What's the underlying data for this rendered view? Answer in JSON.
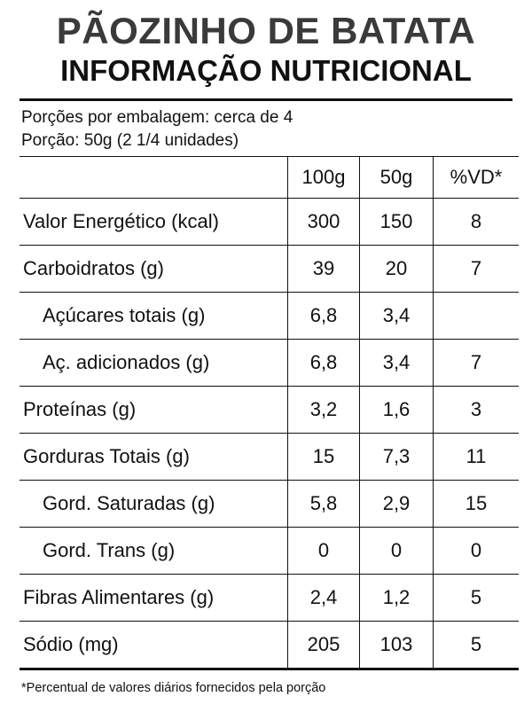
{
  "header": {
    "title": "PÃOZINHO DE BATATA",
    "subtitle": "INFORMAÇÃO NUTRICIONAL"
  },
  "serving": {
    "per_package": "Porções por embalagem: cerca de 4",
    "portion": "Porção: 50g (2 1/4 unidades)"
  },
  "table": {
    "headers": [
      "",
      "100g",
      "50g",
      "%VD*"
    ],
    "rows": [
      {
        "name": "Valor Energético (kcal)",
        "v100": "300",
        "v50": "150",
        "vd": "8"
      },
      {
        "name": "Carboidratos (g)",
        "v100": "39",
        "v50": "20",
        "vd": "7"
      },
      {
        "name": "Açúcares totais (g)",
        "v100": "6,8",
        "v50": "3,4",
        "vd": ""
      },
      {
        "name": "Aç. adicionados (g)",
        "v100": "6,8",
        "v50": "3,4",
        "vd": "7"
      },
      {
        "name": "Proteínas (g)",
        "v100": "3,2",
        "v50": "1,6",
        "vd": "3"
      },
      {
        "name": "Gorduras Totais (g)",
        "v100": "15",
        "v50": "7,3",
        "vd": "11"
      },
      {
        "name": "Gord. Saturadas (g)",
        "v100": "5,8",
        "v50": "2,9",
        "vd": "15"
      },
      {
        "name": "Gord. Trans (g)",
        "v100": "0",
        "v50": "0",
        "vd": "0"
      },
      {
        "name": "Fibras Alimentares (g)",
        "v100": "2,4",
        "v50": "1,2",
        "vd": "5"
      },
      {
        "name": "Sódio (mg)",
        "v100": "205",
        "v50": "103",
        "vd": "5"
      }
    ]
  },
  "footnote": "*Percentual de valores diários fornecidos pela porção",
  "colors": {
    "title": "#3a3a3a",
    "text": "#111111",
    "background": "#ffffff"
  }
}
